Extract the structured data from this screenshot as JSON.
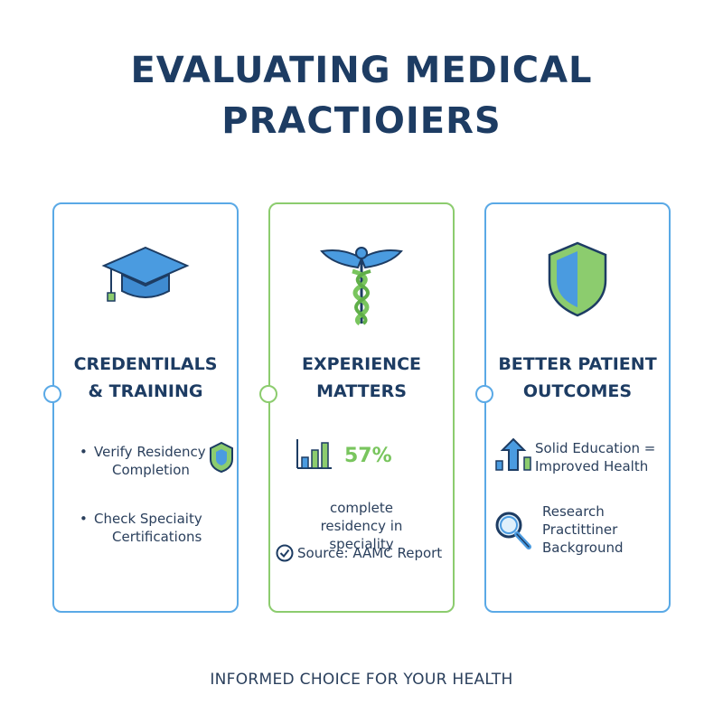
{
  "title": {
    "line1": "EVALUATING MEDICAL",
    "line2": "PRACTIOIERS"
  },
  "colors": {
    "navy": "#1d3c63",
    "blue": "#5aa9e6",
    "green": "#79c55e"
  },
  "cards": [
    {
      "icon": "graduation-cap-icon",
      "title_line1": "CREDENTILALS",
      "title_line2": "& TRAINING",
      "items": [
        {
          "line1": "Verify Residency",
          "line2": "Completion",
          "icon": "shield-badge-icon"
        },
        {
          "line1": "Check Speciaity",
          "line2": "Certifications"
        }
      ]
    },
    {
      "icon": "caduceus-icon",
      "title_line1": "EXPERIENCE",
      "title_line2": "MATTERS",
      "stat": {
        "value": "57%",
        "icon": "bar-chart-icon"
      },
      "desc_line1": "complete",
      "desc_line2": "residency in",
      "desc_line3": "speciality",
      "source": "Source: AAMC Report",
      "source_icon": "check-circle-icon"
    },
    {
      "icon": "shield-icon",
      "title_line1": "BETTER PATIENT",
      "title_line2": "OUTCOMES",
      "items": [
        {
          "line1": "Solid Education =",
          "line2": "Improved Health",
          "icon": "growth-arrow-icon"
        },
        {
          "line1": "Research",
          "line2": "Practittiner",
          "line3": "Background",
          "icon": "magnifier-icon"
        }
      ]
    }
  ],
  "footer": "INFORMED CHOICE FOR YOUR HEALTH"
}
